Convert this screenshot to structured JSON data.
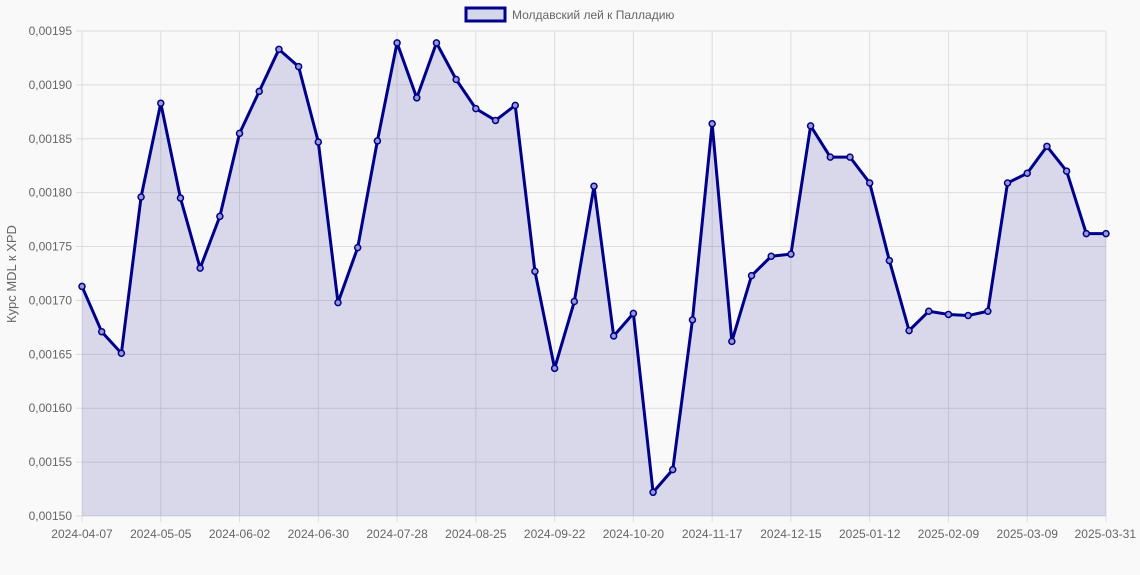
{
  "chart_data": {
    "type": "line",
    "title": "",
    "legend": {
      "label": "Молдавский лей к Палладию",
      "placement": "top-center"
    },
    "xlabel": "",
    "ylabel": "Курс MDL к XPD",
    "ylim": [
      0.0015,
      0.00195
    ],
    "y_ticks": [
      "0,00150",
      "0,00155",
      "0,00160",
      "0,00165",
      "0,00170",
      "0,00175",
      "0,00180",
      "0,00185",
      "0,00190",
      "0,00195"
    ],
    "x_ticks": [
      "2024-04-07",
      "2024-05-05",
      "2024-06-02",
      "2024-06-30",
      "2024-07-28",
      "2024-08-25",
      "2024-09-22",
      "2024-10-20",
      "2024-11-17",
      "2024-12-15",
      "2025-01-12",
      "2025-02-09",
      "2025-03-09",
      "2025-03-31"
    ],
    "x_tick_indices": [
      0,
      4,
      8,
      12,
      16,
      20,
      24,
      28,
      32,
      36,
      40,
      44,
      48,
      52
    ],
    "grid": true,
    "colors": {
      "line": "#00008b",
      "fill": "rgba(0,0,139,0.13)",
      "grid": "#dddddd"
    },
    "values": [
      0.001713,
      0.001671,
      0.001651,
      0.001796,
      0.001883,
      0.001795,
      0.00173,
      0.001778,
      0.001855,
      0.001894,
      0.001933,
      0.001917,
      0.001847,
      0.001698,
      0.001749,
      0.001848,
      0.001939,
      0.001888,
      0.001939,
      0.001905,
      0.001878,
      0.001867,
      0.001881,
      0.001727,
      0.001637,
      0.001699,
      0.001806,
      0.001667,
      0.001688,
      0.001522,
      0.001543,
      0.001682,
      0.001864,
      0.001662,
      0.001723,
      0.001741,
      0.001743,
      0.001862,
      0.001833,
      0.001833,
      0.001809,
      0.001737,
      0.001672,
      0.00169,
      0.001687,
      0.001686,
      0.00169,
      0.001809,
      0.001818,
      0.001843,
      0.00182,
      0.001762,
      0.001762
    ]
  }
}
